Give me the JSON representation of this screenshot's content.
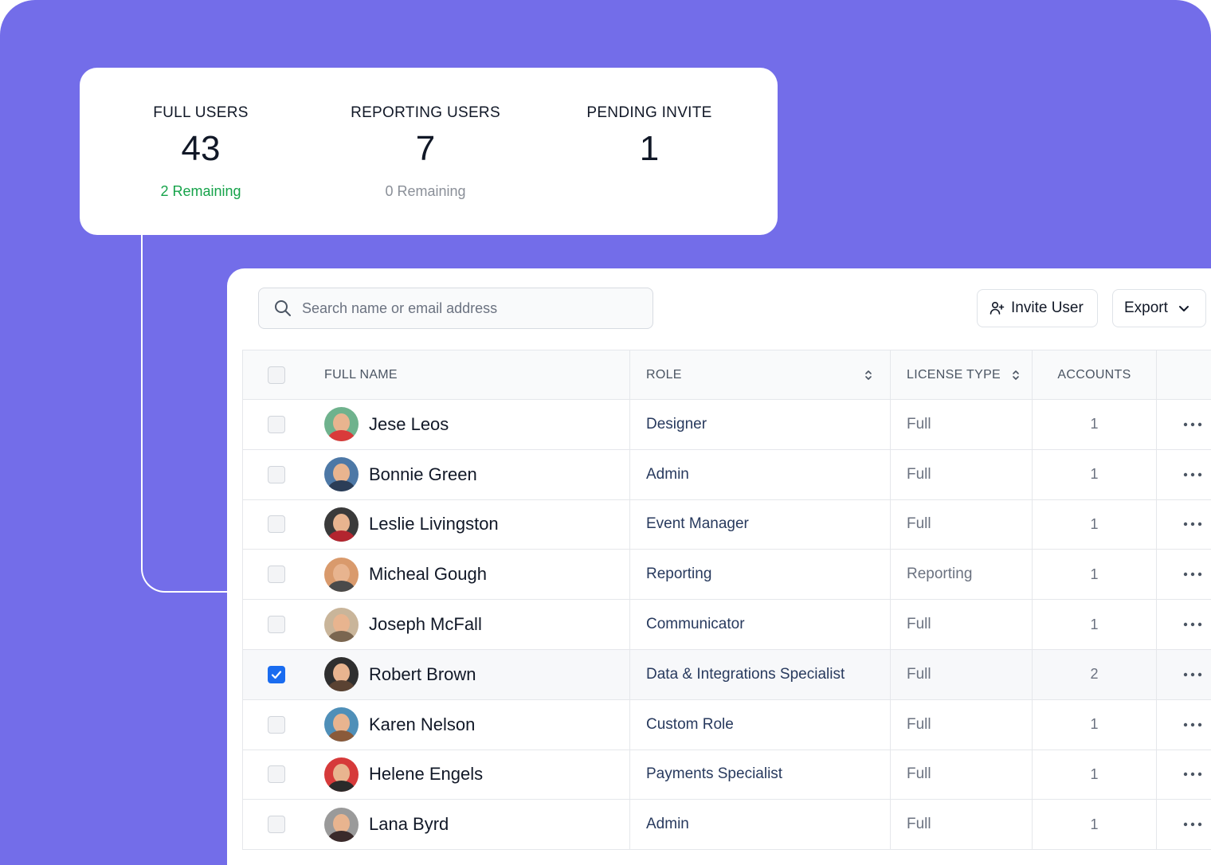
{
  "stats": [
    {
      "label": "FULL USERS",
      "value": "43",
      "sub": "2 Remaining",
      "tone": "green"
    },
    {
      "label": "REPORTING USERS",
      "value": "7",
      "sub": "0 Remaining",
      "tone": "gray"
    },
    {
      "label": "PENDING INVITE",
      "value": "1",
      "sub": "",
      "tone": "none"
    }
  ],
  "toolbar": {
    "search_placeholder": "Search name or email address",
    "invite_label": "Invite User",
    "export_label": "Export"
  },
  "table": {
    "headers": {
      "full_name": "FULL NAME",
      "role": "ROLE",
      "license_type": "LICENSE TYPE",
      "accounts": "ACCOUNTS"
    },
    "rows": [
      {
        "name": "Jese Leos",
        "role": "Designer",
        "license": "Full",
        "accounts": "1",
        "checked": false,
        "avatar_bg": "#6fb28d",
        "avatar_shirt": "#d93a3a"
      },
      {
        "name": "Bonnie Green",
        "role": "Admin",
        "license": "Full",
        "accounts": "1",
        "checked": false,
        "avatar_bg": "#4d78a6",
        "avatar_shirt": "#2b3d57"
      },
      {
        "name": "Leslie Livingston",
        "role": "Event Manager",
        "license": "Full",
        "accounts": "1",
        "checked": false,
        "avatar_bg": "#3a3a3a",
        "avatar_shirt": "#b3252f"
      },
      {
        "name": "Micheal Gough",
        "role": "Reporting",
        "license": "Reporting",
        "accounts": "1",
        "checked": false,
        "avatar_bg": "#d99a6c",
        "avatar_shirt": "#4a4a4a"
      },
      {
        "name": "Joseph McFall",
        "role": "Communicator",
        "license": "Full",
        "accounts": "1",
        "checked": false,
        "avatar_bg": "#c9b59a",
        "avatar_shirt": "#7a6650"
      },
      {
        "name": "Robert Brown",
        "role": "Data & Integrations Specialist",
        "license": "Full",
        "accounts": "2",
        "checked": true,
        "avatar_bg": "#2f2f2f",
        "avatar_shirt": "#5a4232"
      },
      {
        "name": "Karen Nelson",
        "role": "Custom Role",
        "license": "Full",
        "accounts": "1",
        "checked": false,
        "avatar_bg": "#4f8fb8",
        "avatar_shirt": "#8a5a3a"
      },
      {
        "name": "Helene Engels",
        "role": "Payments Specialist",
        "license": "Full",
        "accounts": "1",
        "checked": false,
        "avatar_bg": "#d63a3a",
        "avatar_shirt": "#2a2a2a"
      },
      {
        "name": "Lana Byrd",
        "role": "Admin",
        "license": "Full",
        "accounts": "1",
        "checked": false,
        "avatar_bg": "#9a9a9a",
        "avatar_shirt": "#3a2a2a"
      }
    ]
  },
  "colors": {
    "background": "#736de9",
    "remaining_green": "#16a34a",
    "checkbox_blue": "#1a6cf0",
    "role_text": "#283a5e"
  },
  "icons": [
    "search-icon",
    "user-plus-icon",
    "chevron-down-icon",
    "sort-icon",
    "check-icon",
    "more-horizontal-icon"
  ]
}
